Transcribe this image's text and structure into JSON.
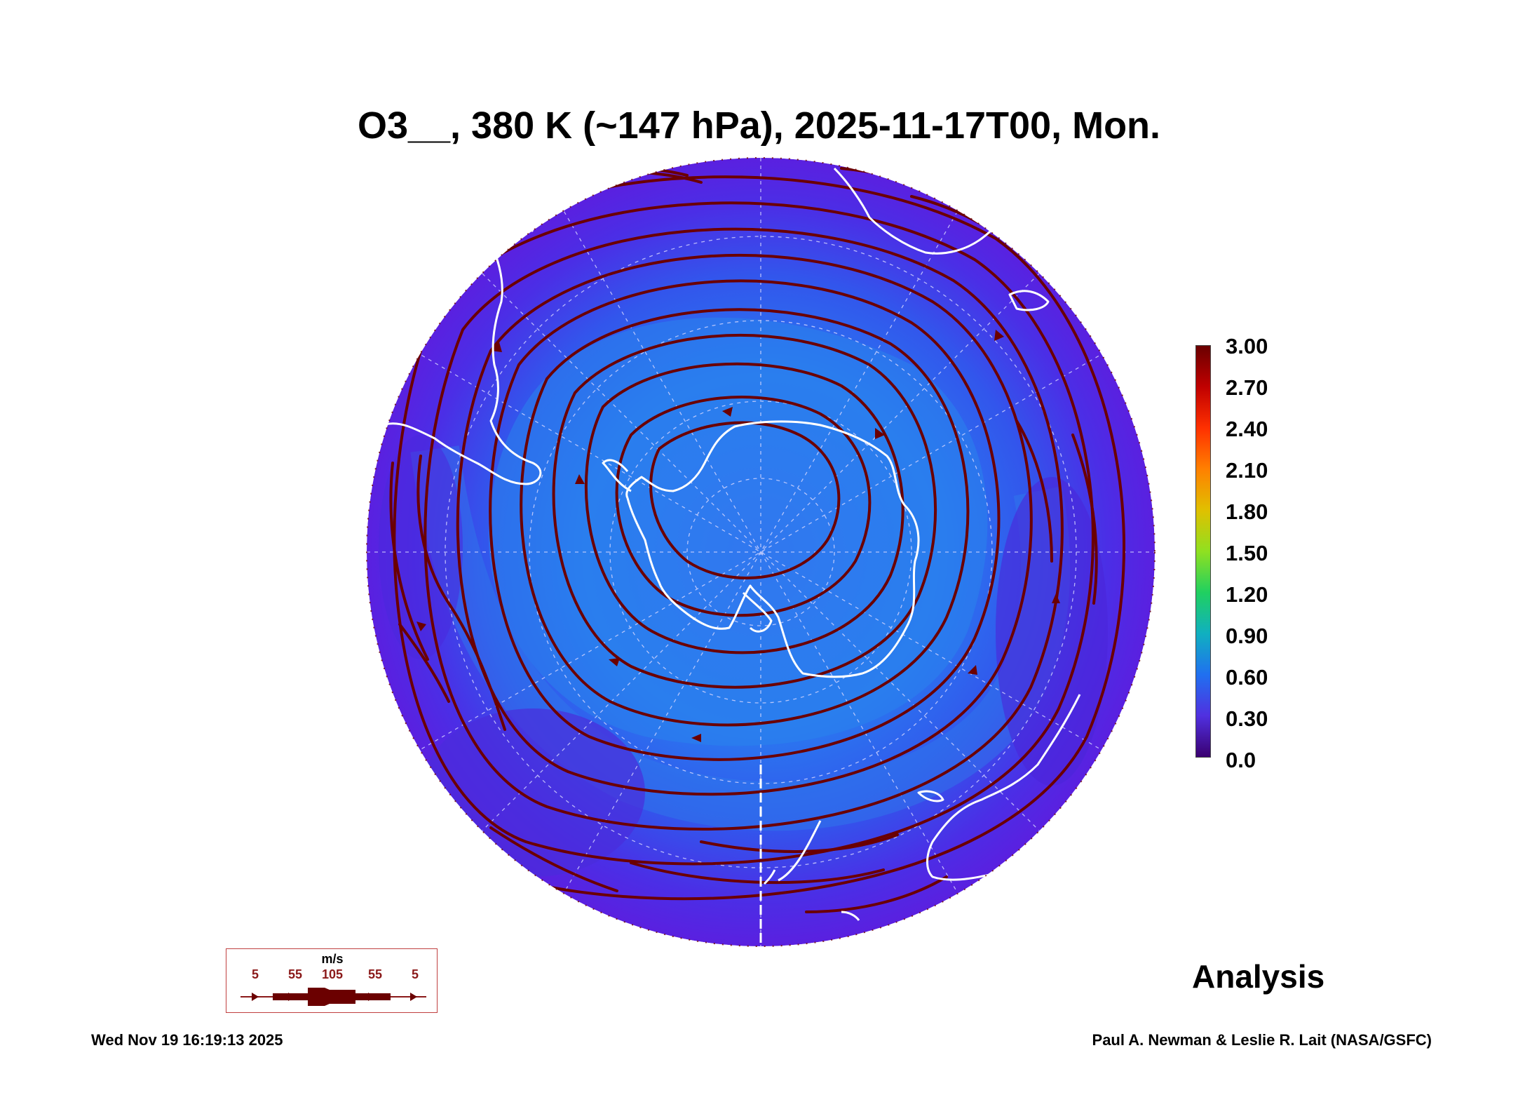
{
  "title": "O3__, 380 K (~147 hPa), 2025-11-17T00, Mon.",
  "colorbar": {
    "labels": [
      "3.00",
      "2.70",
      "2.40",
      "2.10",
      "1.80",
      "1.50",
      "1.20",
      "0.90",
      "0.60",
      "0.30",
      "0.0"
    ],
    "colors": [
      "#6a0000",
      "#c00000",
      "#ff3000",
      "#ff8000",
      "#e0c000",
      "#90e020",
      "#20d060",
      "#10b0c0",
      "#2070f0",
      "#5030e0",
      "#3a0070"
    ]
  },
  "map": {
    "projection": "south polar stereographic",
    "background_color": "#5a24e6",
    "interior_color": "#2a6ef0",
    "streamline_color": "#6b0000",
    "coastline_color": "#ffffff"
  },
  "wind_legend": {
    "unit": "m/s",
    "values": [
      "5",
      "55",
      "105",
      "55",
      "5"
    ]
  },
  "label": "Analysis",
  "timestamp": "Wed Nov 19 16:19:13 2025",
  "credits": "Paul A. Newman & Leslie R. Lait (NASA/GSFC)"
}
